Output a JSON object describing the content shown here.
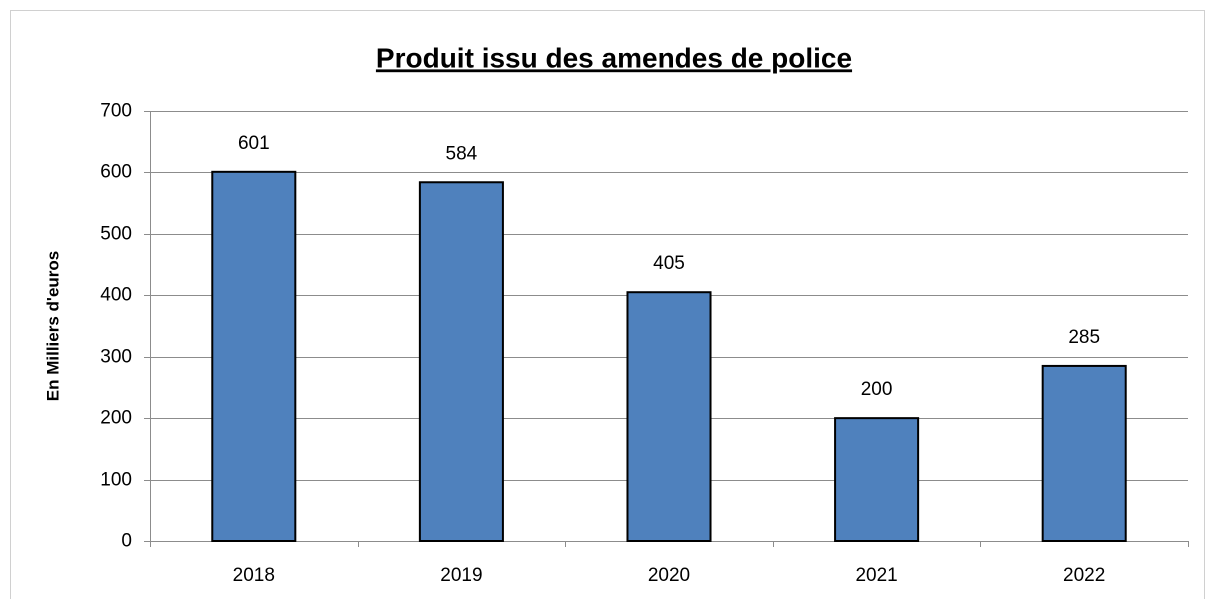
{
  "chart_data": {
    "type": "bar",
    "title": "Produit issu des amendes de police",
    "y_label": "En Milliers d'euros",
    "categories": [
      "2018",
      "2019",
      "2020",
      "2021",
      "2022"
    ],
    "values": [
      601,
      584,
      405,
      200,
      285
    ],
    "color": "#4f81bd",
    "ylim": [
      0,
      700
    ],
    "yticks": [
      0,
      100,
      200,
      300,
      400,
      500,
      600,
      700
    ],
    "grid": true
  }
}
